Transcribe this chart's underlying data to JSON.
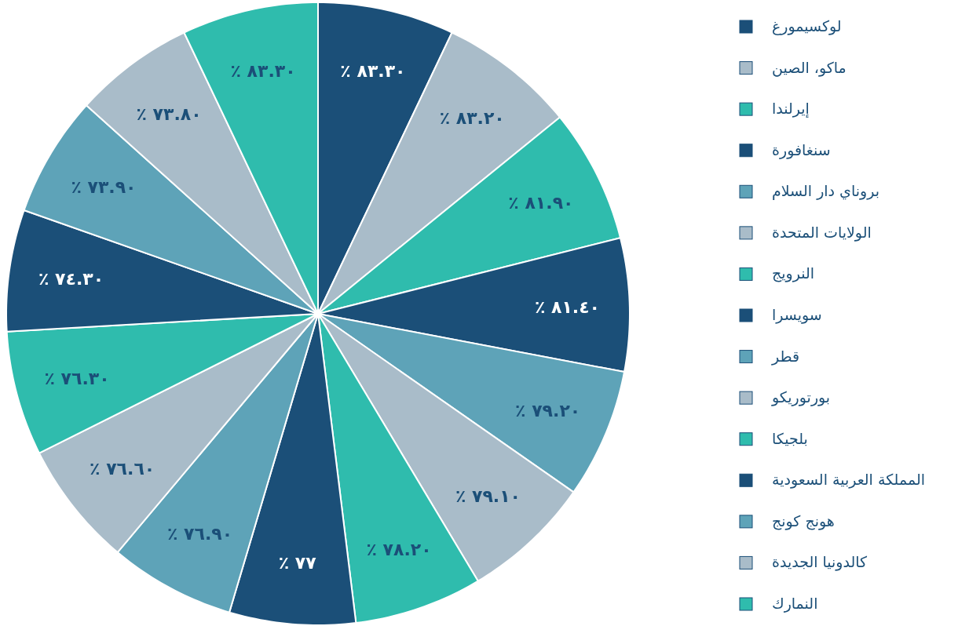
{
  "chart_data": {
    "type": "pie",
    "categories": [
      "لوكسيمورغ",
      "ماكو، الصين",
      "إيرلندا",
      "سنغافورة",
      "بروناي دار السلام",
      "الولايات المتحدة",
      "النرويج",
      "سويسرا",
      "قطر",
      "بورتوريكو",
      "بلجيكا",
      "المملكة العربية السعودية",
      "هونج كونج",
      "كالدونيا الجديدة",
      "النمارك"
    ],
    "values": [
      83.3,
      83.2,
      81.9,
      81.4,
      79.2,
      79.1,
      78.2,
      77,
      76.9,
      76.6,
      76.3,
      74.3,
      73.9,
      73.8,
      83.3
    ],
    "value_labels": [
      "٨٣.٣٠ ٪",
      "٨٣.٢٠ ٪",
      "٨١.٩٠ ٪",
      "٨١.٤٠ ٪",
      "٧٩.٢٠ ٪",
      "٧٩.١٠ ٪",
      "٧٨.٢٠ ٪",
      "٧٧ ٪",
      "٧٦.٩٠ ٪",
      "٧٦.٦٠ ٪",
      "٧٦.٣٠ ٪",
      "٧٤.٣٠ ٪",
      "٧٣.٩٠ ٪",
      "٧٣.٨٠ ٪",
      "٨٣.٣٠ ٪"
    ],
    "colors": [
      "#1b4f78",
      "#a9bcc9",
      "#2fbcad",
      "#1b4f78",
      "#5ea3b8",
      "#a9bcc9",
      "#2fbcad",
      "#1b4f78",
      "#5ea3b8",
      "#a9bcc9",
      "#2fbcad",
      "#1b4f78",
      "#5ea3b8",
      "#a9bcc9",
      "#2fbcad"
    ],
    "legend": "right"
  }
}
